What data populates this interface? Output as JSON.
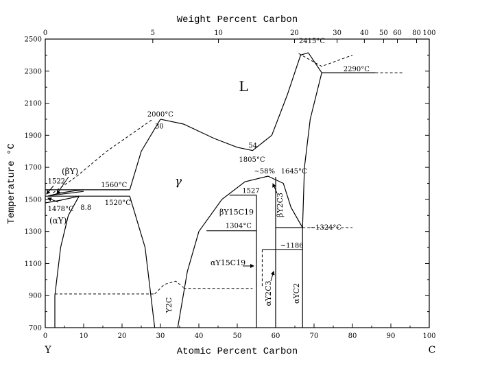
{
  "chart_data": {
    "type": "phase-diagram",
    "title": "",
    "xlabel_bottom": "Atomic Percent Carbon",
    "xlabel_top": "Weight Percent Carbon",
    "ylabel": "Temperature °C",
    "xlim": [
      0,
      100
    ],
    "ylim": [
      700,
      2500
    ],
    "x_ticks": [
      "0",
      "10",
      "20",
      "30",
      "40",
      "50",
      "60",
      "70",
      "80",
      "90",
      "100"
    ],
    "y_ticks": [
      "700",
      "900",
      "1100",
      "1300",
      "1500",
      "1700",
      "1900",
      "2100",
      "2300",
      "2500"
    ],
    "top_ticks": [
      {
        "label": "0",
        "at": 0
      },
      {
        "label": "5",
        "at": 28.0
      },
      {
        "label": "10",
        "at": 45.1
      },
      {
        "label": "20",
        "at": 64.9
      },
      {
        "label": "30",
        "at": 76.0
      },
      {
        "label": "40",
        "at": 83.1
      },
      {
        "label": "50",
        "at": 88.1
      },
      {
        "label": "60",
        "at": 91.7
      },
      {
        "label": "80",
        "at": 96.7
      },
      {
        "label": "100",
        "at": 100
      }
    ],
    "end_labels": {
      "left": "Y",
      "right": "C"
    },
    "phases": {
      "liquid": "L",
      "gamma": "γ",
      "beta_y": "(βY)",
      "alpha_y": "(αY)",
      "y2c": "Y2C",
      "beta_y15c19": "βY15C19",
      "alpha_y15c19": "αY15C19",
      "beta_y2c3": "βY2C3",
      "alpha_y2c3": "αY2C3",
      "alpha_yc2": "αYC2"
    },
    "annotations": [
      {
        "text": "2415°C",
        "x": 68.2,
        "y": 2415
      },
      {
        "text": "2290°C",
        "x": 78,
        "y": 2290
      },
      {
        "text": "2000°C",
        "x": 30.5,
        "y": 2000
      },
      {
        "text": "30",
        "x": 30,
        "y": 1985
      },
      {
        "text": "54",
        "x": 54,
        "y": 1805
      },
      {
        "text": "1805°C",
        "x": 54,
        "y": 1785
      },
      {
        "text": "~58%",
        "x": 56.5,
        "y": 1645
      },
      {
        "text": "1645°C",
        "x": 61,
        "y": 1645
      },
      {
        "text": "1522",
        "x": 1,
        "y": 1522
      },
      {
        "text": "1560°C",
        "x": 14.5,
        "y": 1560
      },
      {
        "text": "1527",
        "x": 52,
        "y": 1527
      },
      {
        "text": "1478°C",
        "x": 1,
        "y": 1478
      },
      {
        "text": "8.8",
        "x": 8.8,
        "y": 1478
      },
      {
        "text": "1520°C",
        "x": 15.5,
        "y": 1520
      },
      {
        "text": "~1324°C",
        "x": 71,
        "y": 1324
      },
      {
        "text": "1304°C",
        "x": 48,
        "y": 1304
      },
      {
        "text": "~1186",
        "x": 63,
        "y": 1186
      }
    ],
    "solid_lines": [
      {
        "name": "liquidus-left",
        "points": [
          [
            0.8,
            1522
          ],
          [
            4,
            1540
          ],
          [
            8,
            1555
          ],
          [
            10,
            1560
          ]
        ]
      },
      {
        "name": "solidus-left",
        "points": [
          [
            0.8,
            1522
          ],
          [
            5,
            1535
          ],
          [
            10,
            1550
          ]
        ]
      },
      {
        "name": "alpha-beta-left",
        "points": [
          [
            0,
            1478
          ],
          [
            4,
            1495
          ],
          [
            8.8,
            1520
          ]
        ]
      },
      {
        "name": "alpha-solvus",
        "points": [
          [
            8.8,
            1520
          ],
          [
            6,
            1400
          ],
          [
            4,
            1200
          ],
          [
            2.5,
            900
          ],
          [
            2.5,
            700
          ]
        ]
      },
      {
        "name": "gamma-left-liquidus",
        "points": [
          [
            22,
            1560
          ],
          [
            25,
            1800
          ],
          [
            30,
            2000
          ]
        ]
      },
      {
        "name": "liquidus-dome",
        "points": [
          [
            30,
            2000
          ],
          [
            36,
            1970
          ],
          [
            44,
            1880
          ],
          [
            50,
            1825
          ],
          [
            54,
            1805
          ],
          [
            59,
            1900
          ],
          [
            63,
            2150
          ],
          [
            66.5,
            2400
          ],
          [
            68.5,
            2415
          ]
        ]
      },
      {
        "name": "liquidus-right",
        "points": [
          [
            68.5,
            2415
          ],
          [
            72,
            2290
          ]
        ]
      },
      {
        "name": "gamma-right-boundary",
        "points": [
          [
            72,
            2290
          ],
          [
            69,
            2000
          ],
          [
            67.5,
            1700
          ],
          [
            67,
            1324
          ]
        ]
      },
      {
        "name": "eutectic-2290",
        "points": [
          [
            72,
            2290
          ],
          [
            86,
            2290
          ]
        ]
      },
      {
        "name": "eutectic-1560",
        "points": [
          [
            0,
            1560
          ],
          [
            22,
            1560
          ]
        ]
      },
      {
        "name": "eutectoid-1520",
        "points": [
          [
            0,
            1520
          ],
          [
            22,
            1520
          ]
        ]
      },
      {
        "name": "y2c-left",
        "points": [
          [
            22,
            1520
          ],
          [
            26,
            1200
          ],
          [
            28.5,
            700
          ]
        ]
      },
      {
        "name": "gamma-upper-dome",
        "points": [
          [
            40,
            1300
          ],
          [
            46,
            1500
          ],
          [
            52,
            1610
          ],
          [
            58,
            1645
          ],
          [
            62,
            1600
          ],
          [
            64,
            1450
          ],
          [
            67,
            1324
          ]
        ]
      },
      {
        "name": "line-1527",
        "points": [
          [
            48,
            1527
          ],
          [
            55,
            1527
          ]
        ]
      },
      {
        "name": "line-1304",
        "points": [
          [
            42,
            1304
          ],
          [
            55,
            1304
          ]
        ]
      },
      {
        "name": "y15c19",
        "points": [
          [
            55,
            1527
          ],
          [
            55,
            700
          ]
        ]
      },
      {
        "name": "y2c3-vertical",
        "points": [
          [
            60,
            1640
          ],
          [
            60,
            700
          ]
        ]
      },
      {
        "name": "yc2-vertical",
        "points": [
          [
            67,
            1324
          ],
          [
            67,
            700
          ]
        ]
      },
      {
        "name": "line-1324",
        "points": [
          [
            60,
            1324
          ],
          [
            67,
            1324
          ]
        ]
      },
      {
        "name": "line-1186",
        "points": [
          [
            56.5,
            1186
          ],
          [
            67,
            1186
          ]
        ]
      },
      {
        "name": "y2c-right",
        "points": [
          [
            34.5,
            700
          ],
          [
            37,
            1050
          ],
          [
            40,
            1300
          ]
        ]
      }
    ],
    "dashed_lines": [
      {
        "name": "dashed-liquidus",
        "points": [
          [
            2,
            1540
          ],
          [
            8,
            1640
          ],
          [
            16,
            1800
          ],
          [
            22,
            1900
          ],
          [
            28,
            2000
          ]
        ]
      },
      {
        "name": "dashed-1324",
        "points": [
          [
            67,
            1324
          ],
          [
            80,
            1324
          ]
        ]
      },
      {
        "name": "dashed-2290",
        "points": [
          [
            86,
            2290
          ],
          [
            93,
            2290
          ]
        ]
      },
      {
        "name": "dashed-2415",
        "points": [
          [
            66,
            2410
          ],
          [
            72,
            2330
          ],
          [
            80,
            2400
          ]
        ]
      },
      {
        "name": "dashed-900",
        "points": [
          [
            2.5,
            910
          ],
          [
            28.5,
            910
          ]
        ]
      },
      {
        "name": "dashed-y2c-dome",
        "points": [
          [
            28.5,
            910
          ],
          [
            31,
            970
          ],
          [
            34,
            990
          ],
          [
            36,
            950
          ]
        ]
      },
      {
        "name": "dashed-950",
        "points": [
          [
            36,
            945
          ],
          [
            54,
            945
          ]
        ]
      },
      {
        "name": "dashed-y2c3-low",
        "points": [
          [
            56.5,
            1186
          ],
          [
            56.5,
            950
          ]
        ]
      }
    ]
  }
}
